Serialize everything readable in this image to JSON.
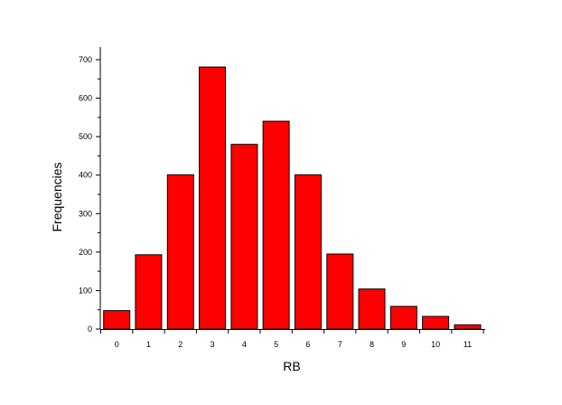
{
  "chart_data": {
    "type": "bar",
    "title": "",
    "xlabel": "RB",
    "ylabel": "Frequencies",
    "categories": [
      "0",
      "1",
      "2",
      "3",
      "4",
      "5",
      "6",
      "7",
      "8",
      "9",
      "10",
      "11"
    ],
    "values": [
      48,
      193,
      401,
      681,
      480,
      540,
      401,
      195,
      104,
      59,
      33,
      11
    ],
    "ylim": [
      0,
      700
    ],
    "yticks": [
      "0",
      "100",
      "200",
      "300",
      "400",
      "500",
      "600",
      "700"
    ],
    "grid": false,
    "legend": "none",
    "colors": {
      "bar_fill": "#ff0000",
      "bar_stroke": "#000000",
      "axis": "#000000"
    }
  }
}
